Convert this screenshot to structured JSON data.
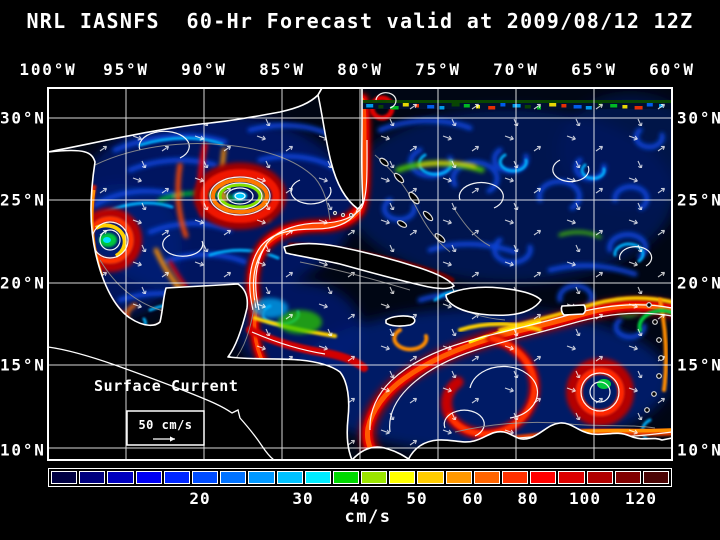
{
  "title": "NRL IASNFS  60-Hr Forecast valid at 2009/08/12 12Z",
  "axes": {
    "lon": [
      "100°W",
      "95°W",
      "90°W",
      "85°W",
      "80°W",
      "75°W",
      "70°W",
      "65°W",
      "60°W"
    ],
    "lat": [
      "30°N",
      "25°N",
      "20°N",
      "15°N",
      "10°N"
    ]
  },
  "legend": {
    "title": "Surface Current",
    "scale": "50 cm/s"
  },
  "colorbar": {
    "units": "cm/s",
    "tick_labels": [
      "20",
      "30",
      "40",
      "50",
      "60",
      "80",
      "100",
      "120"
    ],
    "colors": [
      "#000042",
      "#00007E",
      "#0000BE",
      "#0000F2",
      "#0026FF",
      "#004CFF",
      "#0072FF",
      "#0098FF",
      "#00C2FF",
      "#00ECFF",
      "#00D800",
      "#9BE400",
      "#FFFF00",
      "#FFCC00",
      "#FF9800",
      "#FF6400",
      "#FF3000",
      "#FF0000",
      "#DC0000",
      "#B00000",
      "#800000",
      "#4A0404"
    ]
  },
  "map_colors": {
    "background": "#000000",
    "grid": "#FFFFFF",
    "coastline": "#FFFFFF",
    "bathymetry_contour": "#909090"
  }
}
